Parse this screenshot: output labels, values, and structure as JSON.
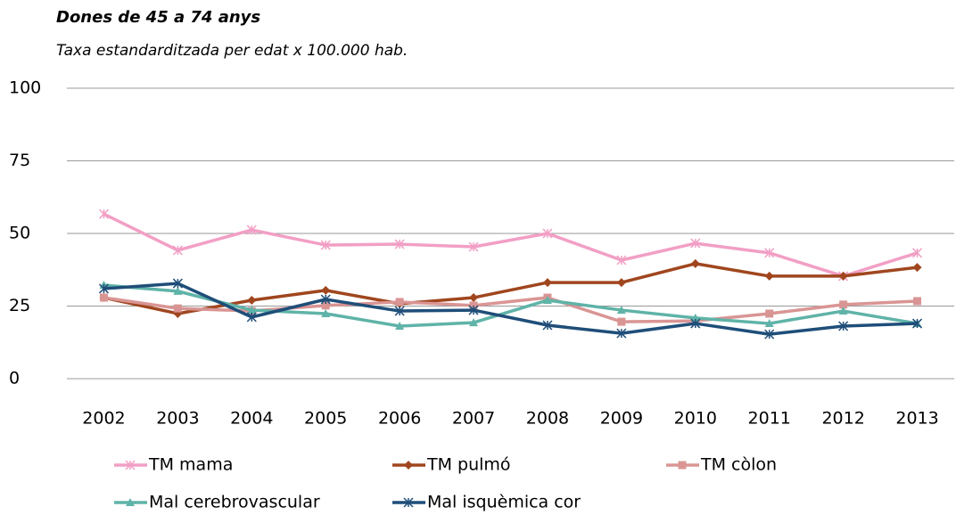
{
  "chart_data": {
    "type": "line",
    "title": "Dones de 45 a 74 anys",
    "subtitle": "Taxa estandarditzada per edat x 100.000 hab.",
    "categories": [
      "2002",
      "2003",
      "2004",
      "2005",
      "2006",
      "2007",
      "2008",
      "2009",
      "2010",
      "2011",
      "2012",
      "2013"
    ],
    "series": [
      {
        "name": "TM mama",
        "color": "#f29fc5",
        "marker": "x",
        "values": [
          56.7,
          44.2,
          51.2,
          46,
          46.3,
          45.4,
          50,
          40.8,
          46.6,
          43.3,
          35.3,
          43.3
        ]
      },
      {
        "name": "TM pulmó",
        "color": "#a0461e",
        "marker": "diamond",
        "values": [
          27.9,
          22.4,
          27,
          30.4,
          25.8,
          27.9,
          33.1,
          33.1,
          39.6,
          35.3,
          35.3,
          38.3
        ]
      },
      {
        "name": "TM còlon",
        "color": "#d99594",
        "marker": "square",
        "values": [
          27.9,
          24.2,
          23.3,
          25.2,
          26.4,
          25.2,
          27.9,
          19.6,
          19.9,
          22.4,
          25.5,
          26.7
        ]
      },
      {
        "name": "Mal cerebrovascular",
        "color": "#5fb3a8",
        "marker": "triangle",
        "values": [
          32.2,
          30.1,
          23.6,
          22.4,
          18.1,
          19.3,
          27,
          23.6,
          20.9,
          19,
          23.3,
          19
        ]
      },
      {
        "name": "Mal isquèmica cor",
        "color": "#1f4e79",
        "marker": "x",
        "values": [
          31,
          32.8,
          21.2,
          27.3,
          23.3,
          23.6,
          18.4,
          15.6,
          19,
          15.3,
          18.1,
          19
        ]
      }
    ],
    "ylim": [
      0,
      100
    ],
    "yticks": [
      0,
      25,
      50,
      75,
      100
    ],
    "grid": true,
    "legend": "bottom"
  }
}
